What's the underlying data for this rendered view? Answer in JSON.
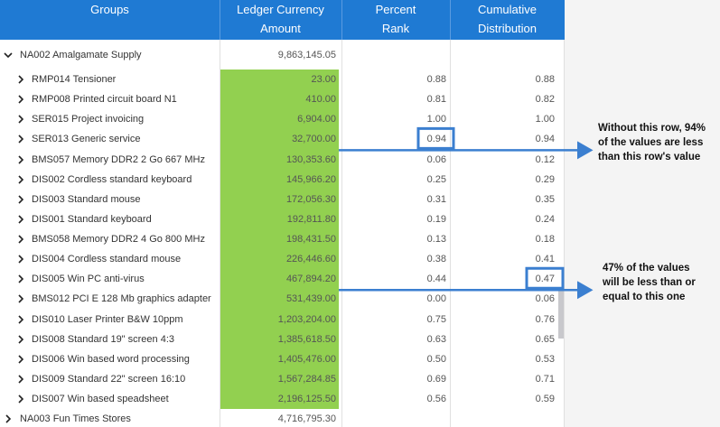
{
  "table": {
    "columns": [
      {
        "title": "Groups"
      },
      {
        "title": "Ledger Currency",
        "subtitle": "Amount"
      },
      {
        "title": "Percent",
        "subtitle": "Rank"
      },
      {
        "title": "Cumulative",
        "subtitle": "Distribution"
      }
    ],
    "rows": [
      {
        "level": 0,
        "expanded": true,
        "label": "NA002 Amalgamate Supply",
        "amount": "9,863,145.05",
        "percent_rank": null,
        "cumulative": null
      },
      {
        "level": 1,
        "label": "RMP014 Tensioner",
        "amount": "23.00",
        "percent_rank": "0.88",
        "cumulative": "0.88"
      },
      {
        "level": 1,
        "label": "RMP008 Printed circuit board N1",
        "amount": "410.00",
        "percent_rank": "0.81",
        "cumulative": "0.82"
      },
      {
        "level": 1,
        "label": "SER015 Project invoicing",
        "amount": "6,904.00",
        "percent_rank": "1.00",
        "cumulative": "1.00"
      },
      {
        "level": 1,
        "label": "SER013 Generic service",
        "amount": "32,700.00",
        "percent_rank": "0.94",
        "cumulative": "0.94"
      },
      {
        "level": 1,
        "label": "BMS057 Memory DDR2 2 Go 667 MHz",
        "amount": "130,353.60",
        "percent_rank": "0.06",
        "cumulative": "0.12"
      },
      {
        "level": 1,
        "label": "DIS002 Cordless standard keyboard",
        "amount": "145,966.20",
        "percent_rank": "0.25",
        "cumulative": "0.29"
      },
      {
        "level": 1,
        "label": "DIS003 Standard mouse",
        "amount": "172,056.30",
        "percent_rank": "0.31",
        "cumulative": "0.35"
      },
      {
        "level": 1,
        "label": "DIS001 Standard keyboard",
        "amount": "192,811.80",
        "percent_rank": "0.19",
        "cumulative": "0.24"
      },
      {
        "level": 1,
        "label": "BMS058 Memory DDR2 4 Go 800 MHz",
        "amount": "198,431.50",
        "percent_rank": "0.13",
        "cumulative": "0.18"
      },
      {
        "level": 1,
        "label": "DIS004 Cordless standard mouse",
        "amount": "226,446.60",
        "percent_rank": "0.38",
        "cumulative": "0.41"
      },
      {
        "level": 1,
        "label": "DIS005 Win PC anti-virus",
        "amount": "467,894.20",
        "percent_rank": "0.44",
        "cumulative": "0.47"
      },
      {
        "level": 1,
        "label": "BMS012 PCI E 128 Mb graphics adapter",
        "amount": "531,439.00",
        "percent_rank": "0.00",
        "cumulative": "0.06"
      },
      {
        "level": 1,
        "label": "DIS010 Laser Printer B&W 10ppm",
        "amount": "1,203,204.00",
        "percent_rank": "0.75",
        "cumulative": "0.76"
      },
      {
        "level": 1,
        "label": "DIS008 Standard 19\" screen 4:3",
        "amount": "1,385,618.50",
        "percent_rank": "0.63",
        "cumulative": "0.65"
      },
      {
        "level": 1,
        "label": "DIS006 Win based word processing",
        "amount": "1,405,476.00",
        "percent_rank": "0.50",
        "cumulative": "0.53"
      },
      {
        "level": 1,
        "label": "DIS009 Standard 22\" screen 16:10",
        "amount": "1,567,284.85",
        "percent_rank": "0.69",
        "cumulative": "0.71"
      },
      {
        "level": 1,
        "label": "DIS007 Win based speadsheet",
        "amount": "2,196,125.50",
        "percent_rank": "0.56",
        "cumulative": "0.59"
      },
      {
        "level": 0,
        "expanded": false,
        "label": "NA003 Fun Times Stores",
        "amount": "4,716,795.30",
        "percent_rank": null,
        "cumulative": null
      }
    ]
  },
  "annotations": [
    {
      "row": 4,
      "column": "percent_rank",
      "lines": [
        "Without this row, 94%",
        "of the values are less",
        "than this row's value"
      ]
    },
    {
      "row": 11,
      "column": "cumulative",
      "lines": [
        "47% of the values",
        "will be less than or",
        "equal to this one"
      ]
    }
  ]
}
